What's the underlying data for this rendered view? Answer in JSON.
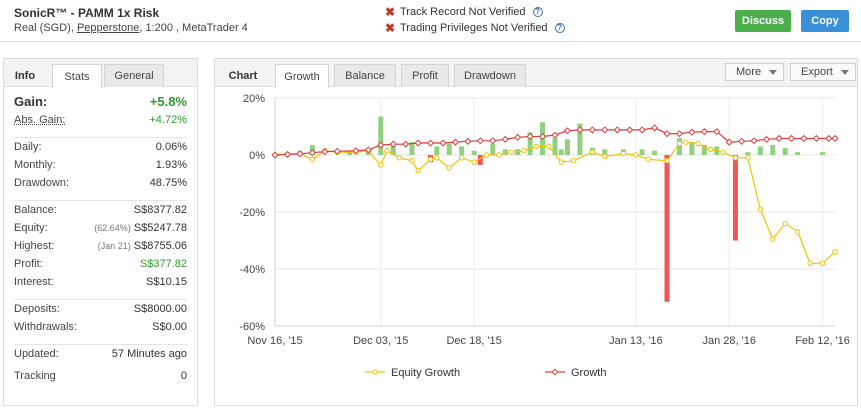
{
  "header": {
    "title": "SonicR™ - PAMM 1x Risk",
    "sub_prefix": "Real (SGD),",
    "broker": "Pepperstone",
    "sub_suffix": ", 1:200 , MetaTrader 4",
    "track_record": "Track Record Not Verified",
    "trading_privileges": "Trading Privileges Not Verified",
    "discuss_label": "Discuss",
    "copy_label": "Copy"
  },
  "info": {
    "tabs": {
      "title": "Info",
      "stats": "Stats",
      "general": "General"
    },
    "gain_label": "Gain:",
    "gain_value": "+5.8%",
    "abs_gain_label": "Abs. Gain:",
    "abs_gain_value": "+4.72%",
    "daily_label": "Daily:",
    "daily_value": "0.06%",
    "monthly_label": "Monthly:",
    "monthly_value": "1.93%",
    "drawdown_label": "Drawdown:",
    "drawdown_value": "48.75%",
    "balance_label": "Balance:",
    "balance_value": "S$8377.82",
    "equity_label": "Equity:",
    "equity_pre": "(62.64%)",
    "equity_value": "S$5247.78",
    "highest_label": "Highest:",
    "highest_pre": "(Jan 21)",
    "highest_value": "S$8755.06",
    "profit_label": "Profit:",
    "profit_value": "S$377.82",
    "interest_label": "Interest:",
    "interest_value": "S$10.15",
    "deposits_label": "Deposits:",
    "deposits_value": "S$8000.00",
    "withdrawals_label": "Withdrawals:",
    "withdrawals_value": "S$0.00",
    "updated_label": "Updated:",
    "updated_value": "57 Minutes ago",
    "tracking_label": "Tracking",
    "tracking_value": "0"
  },
  "chart_panel": {
    "tabs": {
      "title": "Chart",
      "growth": "Growth",
      "balance": "Balance",
      "profit": "Profit",
      "drawdown": "Drawdown"
    },
    "more_label": "More",
    "export_label": "Export"
  },
  "colors": {
    "equity": "#f2c200",
    "growth": "#e03a3a",
    "bar_positive": "#8fd17f",
    "bar_negative": "#f25555"
  },
  "chart_data": {
    "type": "line",
    "ylim": [
      -60,
      20
    ],
    "yticks": [
      "20%",
      "0%",
      "-20%",
      "-40%",
      "-60%"
    ],
    "ytick_values": [
      20,
      0,
      -20,
      -40,
      -60
    ],
    "xlim": [
      "2015-11-16",
      "2016-02-14"
    ],
    "xticks": [
      "Nov 16, '15",
      "Dec 03, '15",
      "Dec 18, '15",
      "Jan 13, '16",
      "Jan 28, '16",
      "Feb 12, '16"
    ],
    "xtick_dates": [
      "2015-11-16",
      "2015-12-03",
      "2015-12-18",
      "2016-01-13",
      "2016-01-28",
      "2016-02-12"
    ],
    "series": [
      {
        "name": "Equity Growth",
        "points": [
          [
            "2015-11-16",
            0
          ],
          [
            "2015-11-18",
            0.3
          ],
          [
            "2015-11-20",
            0.5
          ],
          [
            "2015-11-22",
            -1.5
          ],
          [
            "2015-11-24",
            1.5
          ],
          [
            "2015-11-26",
            1
          ],
          [
            "2015-11-29",
            1
          ],
          [
            "2015-12-01",
            1.5
          ],
          [
            "2015-12-03",
            -3.5
          ],
          [
            "2015-12-04",
            1.5
          ],
          [
            "2015-12-06",
            -1
          ],
          [
            "2015-12-08",
            -2
          ],
          [
            "2015-12-09",
            -5.5
          ],
          [
            "2015-12-11",
            -1.5
          ],
          [
            "2015-12-12",
            -1
          ],
          [
            "2015-12-14",
            -4.5
          ],
          [
            "2015-12-16",
            -1
          ],
          [
            "2015-12-18",
            -2.5
          ],
          [
            "2015-12-20",
            0
          ],
          [
            "2015-12-22",
            0
          ],
          [
            "2015-12-24",
            1
          ],
          [
            "2015-12-26",
            1.5
          ],
          [
            "2015-12-28",
            3
          ],
          [
            "2015-12-30",
            3
          ],
          [
            "2016-01-01",
            -2.5
          ],
          [
            "2016-01-03",
            -2
          ],
          [
            "2016-01-06",
            1
          ],
          [
            "2016-01-08",
            -0.5
          ],
          [
            "2016-01-11",
            0.5
          ],
          [
            "2016-01-13",
            0
          ],
          [
            "2016-01-15",
            -1.5
          ],
          [
            "2016-01-18",
            -2
          ],
          [
            "2016-01-20",
            4
          ],
          [
            "2016-01-21",
            4.5
          ],
          [
            "2016-01-23",
            4
          ],
          [
            "2016-01-25",
            2
          ],
          [
            "2016-01-27",
            1
          ],
          [
            "2016-01-29",
            -1
          ],
          [
            "2016-01-31",
            -1
          ],
          [
            "2016-02-02",
            -19
          ],
          [
            "2016-02-04",
            -29.5
          ],
          [
            "2016-02-06",
            -24
          ],
          [
            "2016-02-08",
            -27
          ],
          [
            "2016-02-10",
            -38
          ],
          [
            "2016-02-12",
            -38
          ],
          [
            "2016-02-14",
            -34
          ]
        ]
      },
      {
        "name": "Growth",
        "points": [
          [
            "2015-11-16",
            0
          ],
          [
            "2015-11-18",
            0.2
          ],
          [
            "2015-11-20",
            0.4
          ],
          [
            "2015-11-22",
            0.8
          ],
          [
            "2015-11-24",
            1.2
          ],
          [
            "2015-11-26",
            1.3
          ],
          [
            "2015-11-29",
            1.5
          ],
          [
            "2015-12-01",
            1.8
          ],
          [
            "2015-12-03",
            3.5
          ],
          [
            "2015-12-05",
            3.8
          ],
          [
            "2015-12-07",
            3.8
          ],
          [
            "2015-12-09",
            4.2
          ],
          [
            "2015-12-11",
            4.2
          ],
          [
            "2015-12-13",
            4.2
          ],
          [
            "2015-12-15",
            4.5
          ],
          [
            "2015-12-17",
            4.8
          ],
          [
            "2015-12-19",
            5
          ],
          [
            "2015-12-21",
            5
          ],
          [
            "2015-12-23",
            5.5
          ],
          [
            "2015-12-25",
            6.2
          ],
          [
            "2015-12-27",
            6.5
          ],
          [
            "2015-12-29",
            6.5
          ],
          [
            "2015-12-31",
            7
          ],
          [
            "2016-01-02",
            8.5
          ],
          [
            "2016-01-04",
            8.8
          ],
          [
            "2016-01-06",
            8.8
          ],
          [
            "2016-01-08",
            8.8
          ],
          [
            "2016-01-10",
            8.8
          ],
          [
            "2016-01-12",
            8.8
          ],
          [
            "2016-01-14",
            8.8
          ],
          [
            "2016-01-16",
            9.5
          ],
          [
            "2016-01-18",
            7.5
          ],
          [
            "2016-01-20",
            7.5
          ],
          [
            "2016-01-22",
            8
          ],
          [
            "2016-01-24",
            8.2
          ],
          [
            "2016-01-26",
            8.2
          ],
          [
            "2016-01-28",
            4.5
          ],
          [
            "2016-01-30",
            4.8
          ],
          [
            "2016-02-01",
            5
          ],
          [
            "2016-02-03",
            5.5
          ],
          [
            "2016-02-05",
            5.8
          ],
          [
            "2016-02-07",
            5.8
          ],
          [
            "2016-02-09",
            5.8
          ],
          [
            "2016-02-11",
            5.8
          ],
          [
            "2016-02-13",
            5.8
          ],
          [
            "2016-02-14",
            5.8
          ]
        ]
      }
    ],
    "bars": [
      [
        "2015-11-20",
        1.5
      ],
      [
        "2015-11-22",
        3.5
      ],
      [
        "2015-11-28",
        1.5
      ],
      [
        "2015-12-01",
        2
      ],
      [
        "2015-12-03",
        13.5
      ],
      [
        "2015-12-05",
        3.5
      ],
      [
        "2015-12-08",
        4.5
      ],
      [
        "2015-12-11",
        -2.5
      ],
      [
        "2015-12-12",
        3
      ],
      [
        "2015-12-14",
        4
      ],
      [
        "2015-12-16",
        3
      ],
      [
        "2015-12-18",
        1.5
      ],
      [
        "2015-12-19",
        -3.5
      ],
      [
        "2015-12-21",
        4
      ],
      [
        "2015-12-23",
        2
      ],
      [
        "2015-12-25",
        2
      ],
      [
        "2015-12-27",
        8
      ],
      [
        "2015-12-29",
        11.5
      ],
      [
        "2015-12-31",
        6
      ],
      [
        "2016-01-01",
        2
      ],
      [
        "2016-01-02",
        5.5
      ],
      [
        "2016-01-04",
        11
      ],
      [
        "2016-01-06",
        2.5
      ],
      [
        "2016-01-08",
        2
      ],
      [
        "2016-01-11",
        2
      ],
      [
        "2016-01-14",
        2
      ],
      [
        "2016-01-16",
        1.5
      ],
      [
        "2016-01-18",
        -51.5
      ],
      [
        "2016-01-20",
        6
      ],
      [
        "2016-01-22",
        4.5
      ],
      [
        "2016-01-24",
        3.5
      ],
      [
        "2016-01-26",
        3
      ],
      [
        "2016-01-29",
        -30
      ],
      [
        "2016-01-31",
        1
      ],
      [
        "2016-02-02",
        3
      ],
      [
        "2016-02-04",
        3.5
      ],
      [
        "2016-02-06",
        2.5
      ],
      [
        "2016-02-08",
        1
      ],
      [
        "2016-02-12",
        1
      ]
    ]
  }
}
